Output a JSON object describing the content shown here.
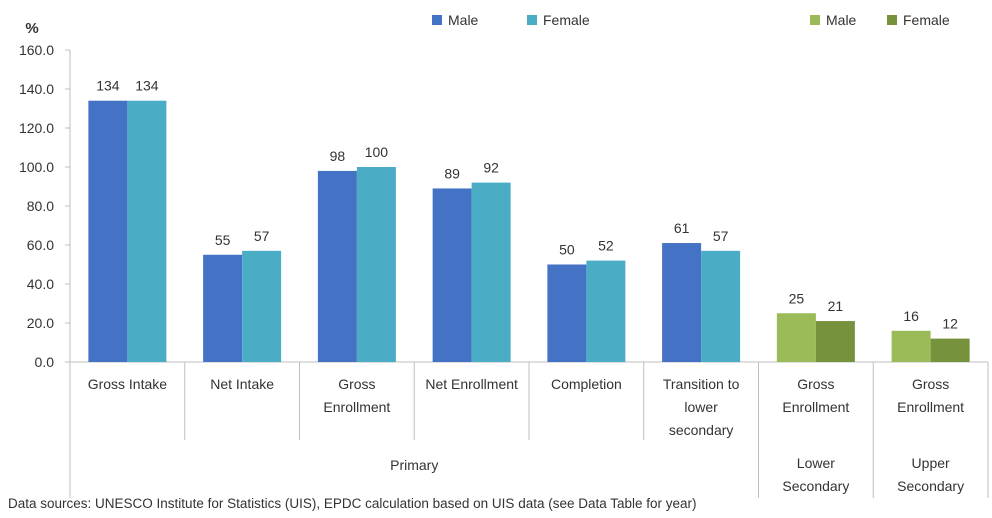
{
  "chart_data": {
    "type": "bar",
    "y_unit_label": "%",
    "ylim": [
      0,
      160
    ],
    "y_ticks": [
      "0.0",
      "20.0",
      "40.0",
      "60.0",
      "80.0",
      "100.0",
      "120.0",
      "140.0",
      "160.0"
    ],
    "grid": false,
    "legend": [
      {
        "name": "Male",
        "color": "#4472C4"
      },
      {
        "name": "Female",
        "color": "#4BACC6"
      },
      {
        "name": "Male",
        "color": "#9BBB59"
      },
      {
        "name": "Female",
        "color": "#76923C"
      }
    ],
    "categories": [
      {
        "label": [
          "Gross Intake"
        ],
        "male": 134,
        "female": 134,
        "colors": [
          "#4472C4",
          "#4BACC6"
        ]
      },
      {
        "label": [
          "Net Intake"
        ],
        "male": 55,
        "female": 57,
        "colors": [
          "#4472C4",
          "#4BACC6"
        ]
      },
      {
        "label": [
          "Gross",
          "Enrollment"
        ],
        "male": 98,
        "female": 100,
        "colors": [
          "#4472C4",
          "#4BACC6"
        ]
      },
      {
        "label": [
          "Net Enrollment"
        ],
        "male": 89,
        "female": 92,
        "colors": [
          "#4472C4",
          "#4BACC6"
        ]
      },
      {
        "label": [
          "Completion"
        ],
        "male": 50,
        "female": 52,
        "colors": [
          "#4472C4",
          "#4BACC6"
        ]
      },
      {
        "label": [
          "Transition to",
          "lower",
          "secondary"
        ],
        "male": 61,
        "female": 57,
        "colors": [
          "#4472C4",
          "#4BACC6"
        ]
      },
      {
        "label": [
          "Gross",
          "Enrollment"
        ],
        "male": 25,
        "female": 21,
        "colors": [
          "#9BBB59",
          "#76923C"
        ]
      },
      {
        "label": [
          "Gross",
          "Enrollment"
        ],
        "male": 16,
        "female": 12,
        "colors": [
          "#9BBB59",
          "#76923C"
        ]
      }
    ],
    "groups": [
      {
        "label": [
          "Primary"
        ],
        "from": 0,
        "to": 5
      },
      {
        "label": [
          "Lower",
          "Secondary"
        ],
        "from": 6,
        "to": 6
      },
      {
        "label": [
          "Upper",
          "Secondary"
        ],
        "from": 7,
        "to": 7
      }
    ]
  },
  "source_note": "Data sources: UNESCO Institute for Statistics (UIS), EPDC calculation based on UIS data (see Data Table for year)"
}
